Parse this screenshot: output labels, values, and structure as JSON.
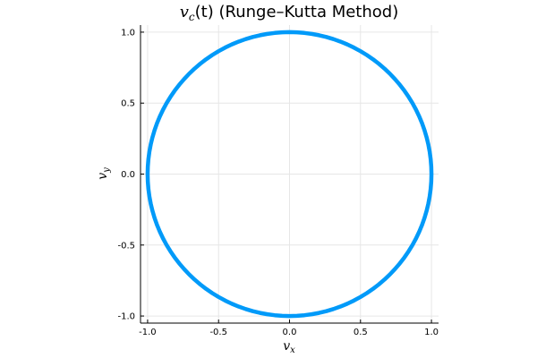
{
  "chart_data": {
    "type": "line",
    "title": {
      "prefix": "v",
      "subscript": "c",
      "suffix": "(t)",
      "text": " (Runge–Kutta Method)"
    },
    "xlabel": {
      "base": "v",
      "subscript": "x"
    },
    "ylabel": {
      "base": "v",
      "subscript": "y"
    },
    "xlim": [
      -1.05,
      1.05
    ],
    "ylim": [
      -1.05,
      1.05
    ],
    "x_ticks": [
      -1.0,
      -0.5,
      0.0,
      0.5,
      1.0
    ],
    "x_tick_labels": [
      "-1.0",
      "-0.5",
      "0.0",
      "0.5",
      "1.0"
    ],
    "y_ticks": [
      -1.0,
      -0.5,
      0.0,
      0.5,
      1.0
    ],
    "y_tick_labels": [
      "-1.0",
      "-0.5",
      "0.0",
      "0.5",
      "1.0"
    ],
    "grid": true,
    "aspect_ratio": "equal",
    "series": [
      {
        "shape": "unit circle",
        "points": 120,
        "center": [
          0.0,
          0.0
        ],
        "radius": 1.0,
        "color": "#009AF9"
      }
    ]
  }
}
